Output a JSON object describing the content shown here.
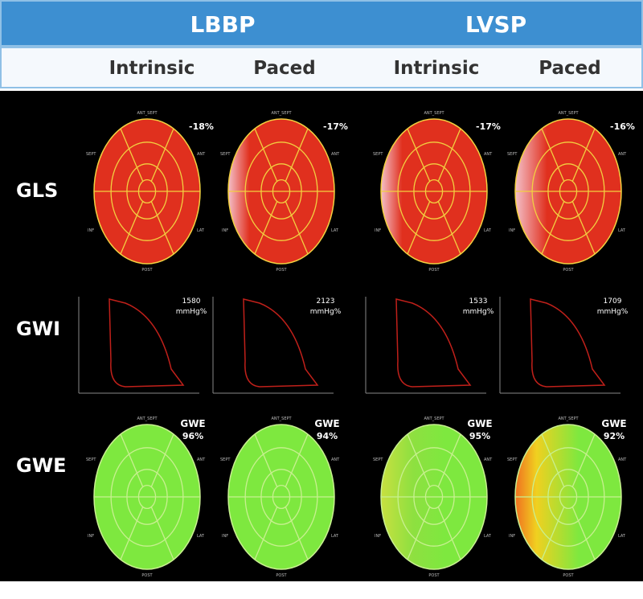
{
  "groups": [
    "LBBP",
    "LVSP"
  ],
  "subheaders": [
    "Intrinsic",
    "Paced",
    "Intrinsic",
    "Paced"
  ],
  "rows": [
    "GLS",
    "GWI",
    "GWE"
  ],
  "segment_labels": {
    "top": "ANT_SEPT",
    "left": "SEPT",
    "right": "ANT",
    "lowright": "LAT",
    "lowleft": "INF",
    "bottom": "POST"
  },
  "gls": [
    "-18%",
    "-17%",
    "-17%",
    "-16%"
  ],
  "gwi": [
    "1580",
    "2123",
    "1533",
    "1709"
  ],
  "gwi_unit": "mmHg%",
  "gwe_label": "GWE",
  "gwe": [
    "96%",
    "94%",
    "95%",
    "92%"
  ],
  "colors": {
    "header": "#3d8fd1",
    "gls": "#e0301e",
    "gwe": "#7ee83f",
    "loop": "#c0201a"
  }
}
